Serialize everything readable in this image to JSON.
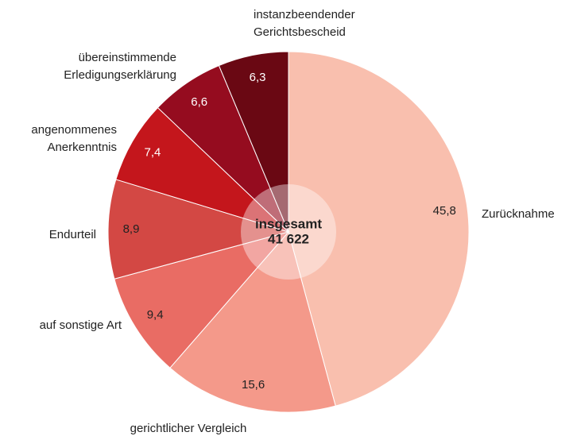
{
  "chart_data": {
    "type": "pie",
    "categories": [
      "Zurücknahme",
      "gerichtlicher Vergleich",
      "auf sonstige Art",
      "Endurteil",
      "angenommenes Anerkenntnis",
      "übereinstimmende Erledigungserklärung",
      "instanzbeendender Gerichtsbescheid"
    ],
    "values": [
      45.8,
      15.6,
      9.4,
      8.9,
      7.4,
      6.6,
      6.3
    ],
    "value_labels": [
      "45,8",
      "15,6",
      "9,4",
      "8,9",
      "7,4",
      "6,6",
      "6,3"
    ],
    "colors": [
      "#f9bfae",
      "#f4998a",
      "#e96c64",
      "#d34844",
      "#c4161c",
      "#950c1f",
      "#6a0813"
    ],
    "center_text": [
      "insgesamt",
      "41 622"
    ]
  }
}
